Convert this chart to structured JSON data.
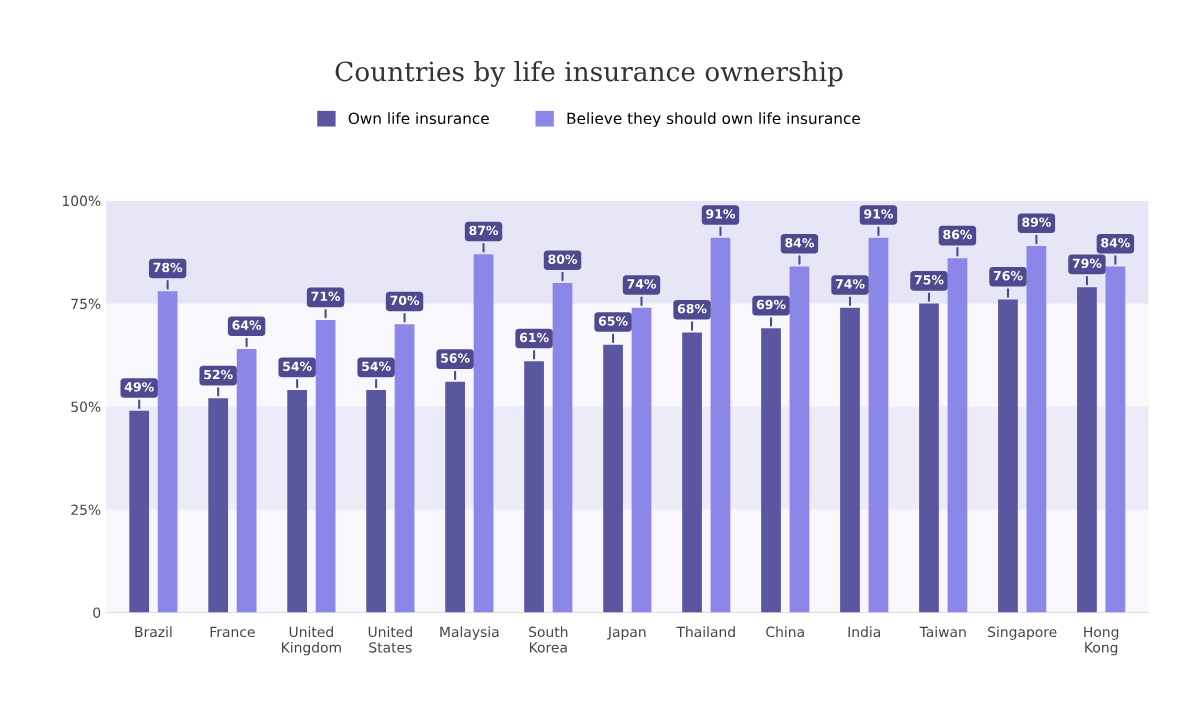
{
  "chart_data": {
    "type": "bar",
    "title": "Countries by life insurance ownership",
    "categories": [
      "Brazil",
      "France",
      "United Kingdom",
      "United States",
      "Malaysia",
      "South Korea",
      "Japan",
      "Thailand",
      "China",
      "India",
      "Taiwan",
      "Singapore",
      "Hong Kong"
    ],
    "series": [
      {
        "name": "Own life insurance",
        "color": "#5b56a0",
        "values": [
          49,
          52,
          54,
          54,
          56,
          61,
          65,
          68,
          69,
          74,
          75,
          76,
          79
        ],
        "value_labels": [
          "49%",
          "52%",
          "54%",
          "54%",
          "56%",
          "61%",
          "65%",
          "68%",
          "69%",
          "74%",
          "75%",
          "76%",
          "79%"
        ]
      },
      {
        "name": "Believe they should own life insurance",
        "color": "#8c86e8",
        "values": [
          78,
          64,
          71,
          70,
          87,
          80,
          74,
          91,
          84,
          91,
          86,
          89,
          84
        ],
        "value_labels": [
          "78%",
          "64%",
          "71%",
          "70%",
          "87%",
          "80%",
          "74%",
          "91%",
          "84%",
          "91%",
          "86%",
          "89%",
          "84%"
        ]
      }
    ],
    "ylim": [
      0,
      100
    ],
    "yticks": [
      0,
      {
        "value": 25,
        "label": "25%"
      },
      {
        "value": 50,
        "label": "50%"
      },
      {
        "value": 75,
        "label": "75%"
      },
      {
        "value": 100,
        "label": "100%"
      }
    ],
    "bands": [
      {
        "axis": "y",
        "from": 25,
        "to": 50,
        "color": "#ececf8"
      },
      {
        "axis": "y",
        "from": 75,
        "to": 100,
        "color": "#e6e6f7"
      }
    ],
    "legend": "top",
    "grid": false
  }
}
